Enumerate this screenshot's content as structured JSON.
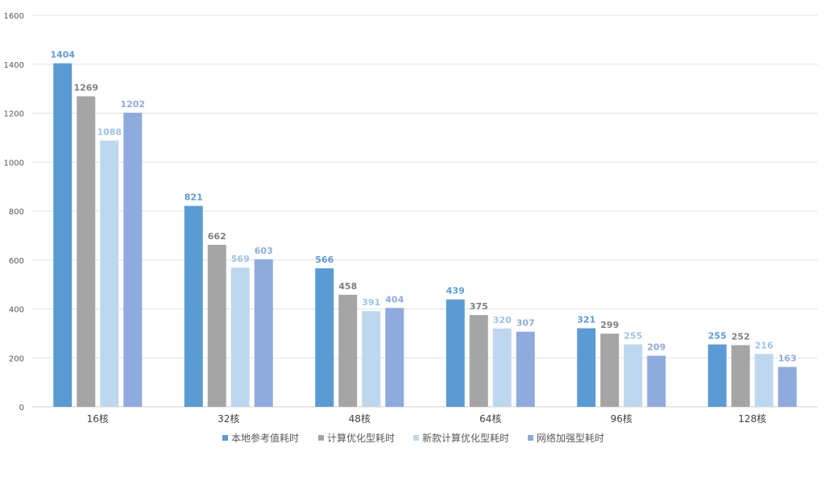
{
  "chart_data": {
    "type": "bar",
    "title": "",
    "xlabel": "",
    "ylabel": "",
    "ylim": [
      0,
      1600
    ],
    "yticks": [
      0,
      200,
      400,
      600,
      800,
      1000,
      1200,
      1400,
      1600
    ],
    "grid": true,
    "legend_position": "bottom",
    "categories": [
      "16核",
      "32核",
      "48核",
      "64核",
      "96核",
      "128核"
    ],
    "series": [
      {
        "name": "本地参考值耗时",
        "color": "#5b9bd5",
        "label_color": "#5b9bd5",
        "values": [
          1404,
          821,
          566,
          439,
          321,
          255
        ]
      },
      {
        "name": "计算优化型耗时",
        "color": "#a5a5a5",
        "label_color": "#7f7f7f",
        "values": [
          1269,
          662,
          458,
          375,
          299,
          252
        ]
      },
      {
        "name": "新款计算优化型耗时",
        "color": "#bdd7ee",
        "label_color": "#9dc3e6",
        "values": [
          1088,
          569,
          391,
          320,
          255,
          216
        ]
      },
      {
        "name": "网络加强型耗时",
        "color": "#8faadc",
        "label_color": "#8faadc",
        "values": [
          1202,
          603,
          404,
          307,
          209,
          163
        ]
      }
    ]
  }
}
